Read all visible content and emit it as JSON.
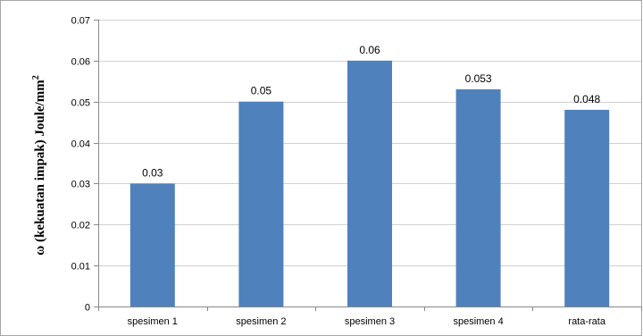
{
  "chart_data": {
    "type": "bar",
    "categories": [
      "spesimen 1",
      "spesimen 2",
      "spesimen 3",
      "spesimen 4",
      "rata-rata"
    ],
    "values": [
      0.03,
      0.05,
      0.06,
      0.053,
      0.048
    ],
    "value_labels": [
      "0.03",
      "0.05",
      "0.06",
      "0.053",
      "0.048"
    ],
    "ylabel_main": "ω (kekuatan impak) Joule/mm",
    "ylabel_sup": "2",
    "ylim": [
      0,
      0.07
    ],
    "yticks": [
      0,
      0.01,
      0.02,
      0.03,
      0.04,
      0.05,
      0.06,
      0.07
    ],
    "ytick_labels": [
      "0",
      "0.01",
      "0.02",
      "0.03",
      "0.04",
      "0.05",
      "0.06",
      "0.07"
    ],
    "grid": true,
    "legend": "none",
    "colors": {
      "bar": "#4f81bd",
      "grid": "#d0d0d0",
      "frame": "#a6a6a6",
      "axis": "#888888"
    }
  }
}
